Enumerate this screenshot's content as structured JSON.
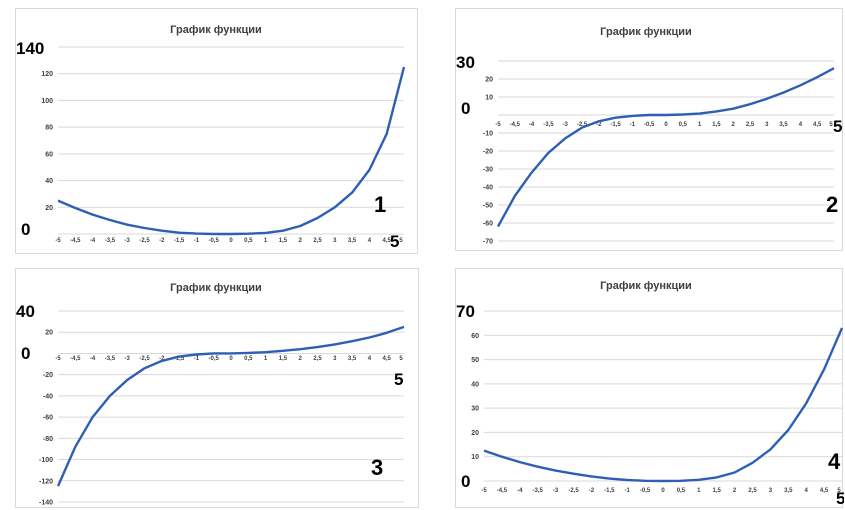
{
  "chart_data": [
    {
      "type": "line",
      "title": "График функции",
      "number_label": "1",
      "xmax_label": "5",
      "ymax_label": "140",
      "zero_label": "0",
      "colors": {
        "line": "#2e5fb5",
        "grid": "#d9d9d9"
      },
      "ylim": [
        0,
        140
      ],
      "yticks": [
        "0",
        "20",
        "40",
        "60",
        "80",
        "100",
        "120",
        "140"
      ],
      "x": [
        "-5",
        "-4,5",
        "-4",
        "-3,5",
        "-3",
        "-2,5",
        "-2",
        "-1,5",
        "-1",
        "-0,5",
        "0",
        "0,5",
        "1",
        "1,5",
        "2",
        "2,5",
        "3",
        "3,5",
        "4",
        "4,5",
        "5"
      ],
      "series": [
        {
          "values": [
            25,
            19.5,
            14.5,
            10.5,
            7,
            4.5,
            2.5,
            1,
            0.3,
            0,
            0,
            0.2,
            0.8,
            2.5,
            6,
            12,
            20,
            31,
            48,
            75,
            125
          ]
        }
      ]
    },
    {
      "type": "line",
      "title": "График функции",
      "number_label": "2",
      "xmax_label": "5",
      "ymax_label": "30",
      "zero_label": "0",
      "colors": {
        "line": "#2e5fb5",
        "grid": "#d9d9d9"
      },
      "ylim": [
        -70,
        30
      ],
      "yticks": [
        "-70",
        "-60",
        "-50",
        "-40",
        "-30",
        "-20",
        "-10",
        "0",
        "10",
        "20",
        "30"
      ],
      "x": [
        "-5",
        "-4,5",
        "-4",
        "-3,5",
        "-3",
        "-2,5",
        "-2",
        "-1,5",
        "-1",
        "-0,5",
        "0",
        "0,5",
        "1",
        "1,5",
        "2",
        "2,5",
        "3",
        "3,5",
        "4",
        "4,5",
        "5"
      ],
      "series": [
        {
          "values": [
            -62,
            -45,
            -32,
            -21,
            -13,
            -7,
            -3.5,
            -1.5,
            -0.5,
            0,
            0,
            0.3,
            0.8,
            2,
            3.5,
            6,
            9,
            12.5,
            16.5,
            21,
            26
          ]
        }
      ]
    },
    {
      "type": "line",
      "title": "График функции",
      "number_label": "3",
      "xmax_label": "5",
      "ymax_label": "40",
      "zero_label": "0",
      "colors": {
        "line": "#2e5fb5",
        "grid": "#d9d9d9"
      },
      "ylim": [
        -140,
        40
      ],
      "yticks": [
        "-140",
        "-120",
        "-100",
        "-80",
        "-60",
        "-40",
        "-20",
        "0",
        "20",
        "40"
      ],
      "x": [
        "-5",
        "-4,5",
        "-4",
        "-3,5",
        "-3",
        "-2,5",
        "-2",
        "-1,5",
        "-1",
        "-0,5",
        "0",
        "0,5",
        "1",
        "1,5",
        "2",
        "2,5",
        "3",
        "3,5",
        "4",
        "4,5",
        "5"
      ],
      "series": [
        {
          "values": [
            -125,
            -88,
            -60,
            -40,
            -25,
            -14,
            -7,
            -3,
            -1,
            0,
            0,
            0.5,
            1.2,
            2.5,
            4,
            6,
            8.5,
            11.5,
            15,
            19.5,
            25
          ]
        }
      ]
    },
    {
      "type": "line",
      "title": "График функции",
      "number_label": "4",
      "xmax_label": "5",
      "ymax_label": "70",
      "zero_label": "0",
      "colors": {
        "line": "#2e5fb5",
        "grid": "#d9d9d9"
      },
      "ylim": [
        0,
        70
      ],
      "yticks": [
        "0",
        "10",
        "20",
        "30",
        "40",
        "50",
        "60",
        "70"
      ],
      "x": [
        "-5",
        "-4,5",
        "-4",
        "-3,5",
        "-3",
        "-2,5",
        "-2",
        "-1,5",
        "-1",
        "-0,5",
        "0",
        "0,5",
        "1",
        "1,5",
        "2",
        "2,5",
        "3",
        "3,5",
        "4",
        "4,5",
        "5"
      ],
      "series": [
        {
          "values": [
            12.5,
            10,
            7.8,
            5.9,
            4.3,
            3,
            1.9,
            1,
            0.4,
            0.1,
            0,
            0.1,
            0.5,
            1.5,
            3.5,
            7.5,
            13,
            21,
            32,
            46,
            63
          ]
        }
      ]
    }
  ]
}
